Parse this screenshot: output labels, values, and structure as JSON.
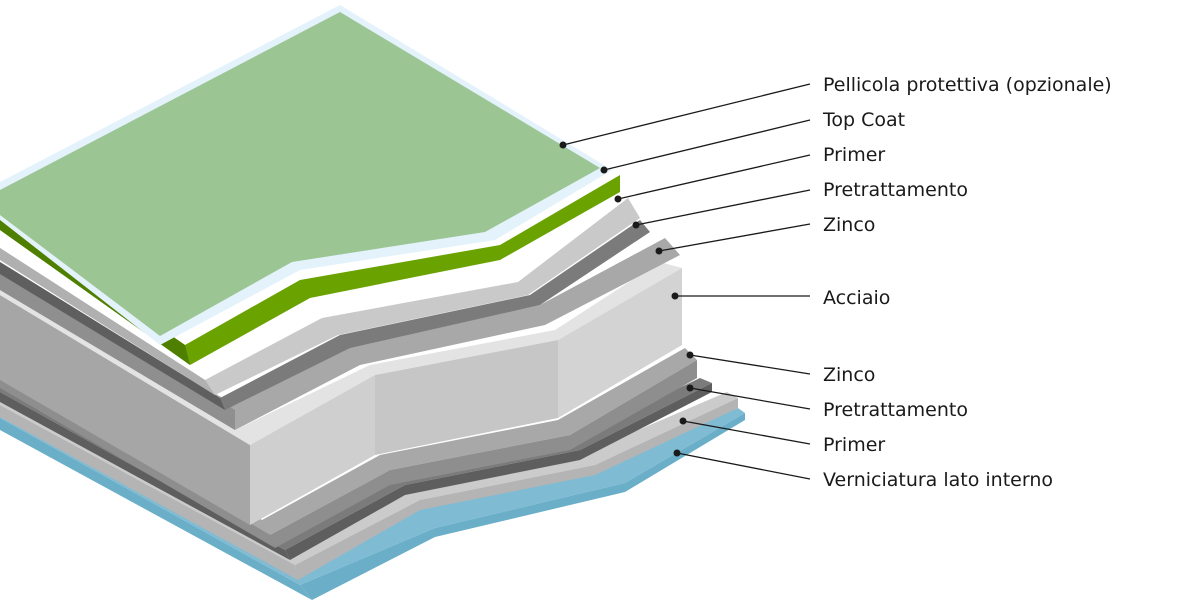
{
  "layers": [
    {
      "id": "pellicola",
      "label": "Pellicola protettiva (opzionale)",
      "color": "#9cc594"
    },
    {
      "id": "topcoat",
      "label": "Top Coat",
      "color": "#6aa200"
    },
    {
      "id": "primer_top",
      "label": "Primer",
      "color": "#c9c9c9"
    },
    {
      "id": "pretrattamento_top",
      "label": "Pretrattamento",
      "color": "#7b7b7b"
    },
    {
      "id": "zinco_top",
      "label": "Zinco",
      "color": "#a6a6a6"
    },
    {
      "id": "acciaio",
      "label": "Acciaio",
      "color": "#d8d8d8"
    },
    {
      "id": "zinco_bottom",
      "label": "Zinco",
      "color": "#a6a6a6"
    },
    {
      "id": "pretrattamento_bottom",
      "label": "Pretrattamento",
      "color": "#7b7b7b"
    },
    {
      "id": "primer_bottom",
      "label": "Primer",
      "color": "#c9c9c9"
    },
    {
      "id": "verniciatura",
      "label": "Verniciatura lato interno",
      "color": "#7fbcd4"
    }
  ]
}
